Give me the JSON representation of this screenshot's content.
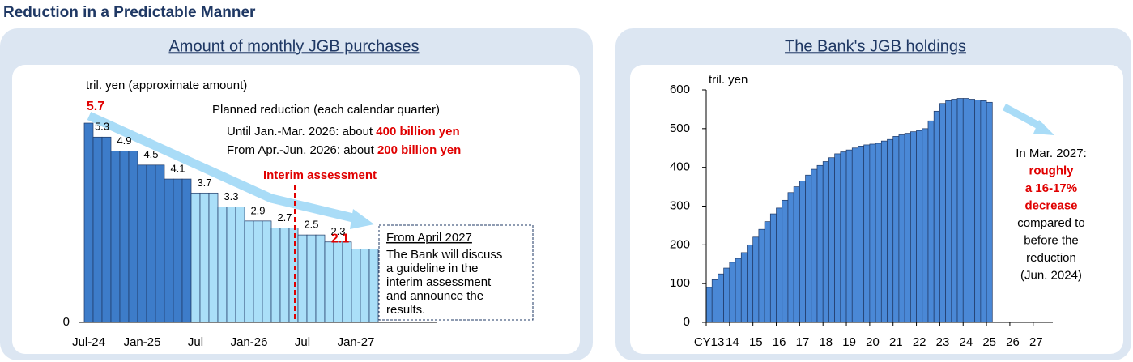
{
  "title": "Reduction in a Predictable Manner",
  "chart_data": [
    {
      "type": "bar",
      "title": "Amount of monthly JGB purchases",
      "y_label": "tril. yen (approximate amount)",
      "categories": [
        "Jul-24",
        null,
        null,
        null,
        null,
        null,
        "Jan-25",
        null,
        null,
        null,
        null,
        null,
        "Jul",
        null,
        null,
        null,
        null,
        null,
        "Jan-26",
        null,
        null,
        null,
        null,
        null,
        "Jul",
        null,
        null,
        null,
        null,
        null,
        "Jan-27",
        null,
        null
      ],
      "values": [
        5.7,
        5.3,
        5.3,
        4.9,
        4.9,
        4.9,
        4.5,
        4.5,
        4.5,
        4.1,
        4.1,
        4.1,
        3.7,
        3.7,
        3.7,
        3.3,
        3.3,
        3.3,
        2.9,
        2.9,
        2.9,
        2.7,
        2.7,
        2.7,
        2.5,
        2.5,
        2.5,
        2.3,
        2.3,
        2.3,
        2.1,
        2.1,
        2.1
      ],
      "colors": [
        "#3d7cc9",
        "#3d7cc9",
        "#3d7cc9",
        "#3d7cc9",
        "#3d7cc9",
        "#3d7cc9",
        "#3d7cc9",
        "#3d7cc9",
        "#3d7cc9",
        "#3d7cc9",
        "#3d7cc9",
        "#3d7cc9",
        "#aadff8",
        "#aadff8",
        "#aadff8",
        "#aadff8",
        "#aadff8",
        "#aadff8",
        "#aadff8",
        "#aadff8",
        "#aadff8",
        "#aadff8",
        "#aadff8",
        "#aadff8",
        "#aadff8",
        "#aadff8",
        "#aadff8",
        "#aadff8",
        "#aadff8",
        "#aadff8",
        "#aadff8",
        "#aadff8",
        "#aadff8"
      ],
      "ylim": [
        0,
        6.5
      ],
      "yticks": [
        0
      ],
      "planned_reduction": {
        "heading": "Planned reduction (each calendar quarter)",
        "rows": [
          {
            "text": "Until Jan.-Mar. 2026: about",
            "amount": "400 billion yen"
          },
          {
            "text": "From Apr.-Jun. 2026: about",
            "amount": "200 billion yen"
          }
        ]
      },
      "interim_assessment": "Interim assessment",
      "box_title": "From April 2027",
      "box_lines": [
        "The Bank will discuss",
        "a guideline in the",
        "interim assessment",
        "and announce the",
        "results."
      ]
    },
    {
      "type": "bar",
      "title": "The Bank's JGB holdings",
      "y_label": "tril. yen",
      "color": "#4a88d6",
      "categories": [
        "CY13",
        null,
        null,
        null,
        "14",
        null,
        null,
        null,
        "15",
        null,
        null,
        null,
        "16",
        null,
        null,
        null,
        "17",
        null,
        null,
        null,
        "18",
        null,
        null,
        null,
        "19",
        null,
        null,
        null,
        "20",
        null,
        null,
        null,
        "21",
        null,
        null,
        null,
        "22",
        null,
        null,
        null,
        "23",
        null,
        null,
        null,
        "24",
        null,
        null,
        null,
        "25",
        null,
        null,
        null,
        "26",
        null,
        null,
        null,
        "27",
        null,
        null,
        null
      ],
      "values": [
        90,
        110,
        125,
        140,
        155,
        165,
        180,
        200,
        220,
        240,
        260,
        280,
        295,
        315,
        335,
        350,
        365,
        380,
        395,
        405,
        415,
        425,
        435,
        440,
        445,
        450,
        455,
        458,
        460,
        462,
        468,
        472,
        480,
        484,
        488,
        492,
        495,
        500,
        520,
        545,
        565,
        572,
        576,
        578,
        578,
        576,
        574,
        572,
        568,
        null,
        null,
        null,
        null,
        null,
        null,
        null,
        null,
        null,
        null,
        null
      ],
      "ylim": [
        0,
        600
      ],
      "yticks": [
        0,
        100,
        200,
        300,
        400,
        500,
        600
      ],
      "note": {
        "before": "In Mar. 2027:",
        "highlight": [
          "roughly",
          "a 16-17%",
          "decrease"
        ],
        "after": [
          "compared to",
          "before the",
          "reduction",
          "(Jun. 2024)"
        ]
      }
    }
  ]
}
